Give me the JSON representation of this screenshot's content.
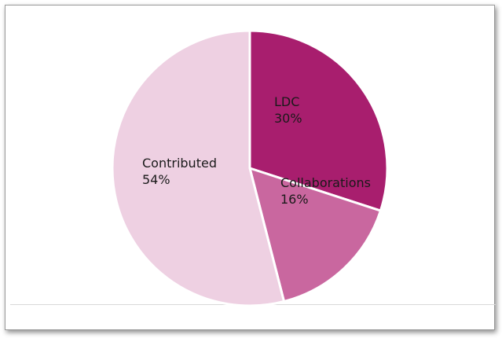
{
  "chart_data": {
    "type": "pie",
    "title": "",
    "slices": [
      {
        "label": "LDC",
        "value": 30,
        "display": "30%",
        "color": "#a81e6e"
      },
      {
        "label": "Collaborations",
        "value": 16,
        "display": "16%",
        "color": "#c9679f"
      },
      {
        "label": "Contributed",
        "value": 54,
        "display": "54%",
        "color": "#eed0e2"
      }
    ],
    "start_angle_deg": 0,
    "direction": "clockwise-from-12-oclock",
    "slice_border_color": "#ffffff",
    "legend": "none"
  }
}
